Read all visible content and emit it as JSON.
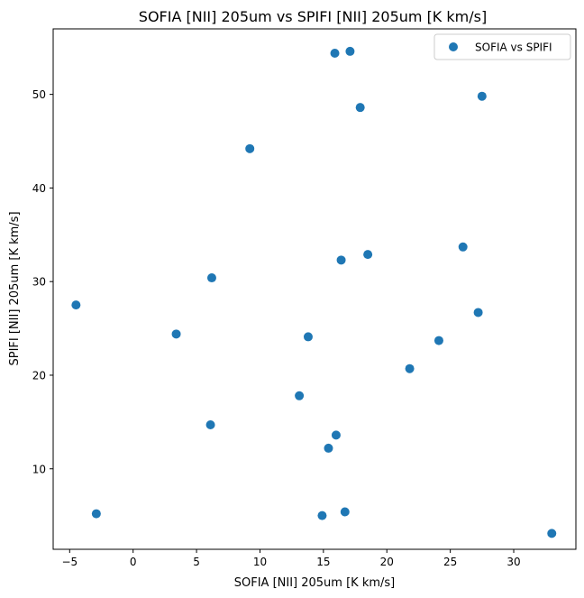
{
  "chart_data": {
    "type": "scatter",
    "title": "SOFIA [NII] 205um vs SPIFI [NII] 205um [K km/s]",
    "xlabel": "SOFIA [NII] 205um [K km/s]",
    "ylabel": "SPIFI [NII] 205um [K km/s]",
    "xlim": [
      -6.3,
      34.9
    ],
    "ylim": [
      1.4,
      57.0
    ],
    "xticks": [
      -5,
      0,
      5,
      10,
      15,
      20,
      25,
      30
    ],
    "yticks": [
      10,
      20,
      30,
      40,
      50
    ],
    "xtick_labels": [
      "−5",
      "0",
      "5",
      "10",
      "15",
      "20",
      "25",
      "30"
    ],
    "ytick_labels": [
      "10",
      "20",
      "30",
      "40",
      "50"
    ],
    "grid": false,
    "legend_position": "top-right",
    "series": [
      {
        "name": "SOFIA vs SPIFI",
        "color": "#1f77b4",
        "points": [
          {
            "x": -4.5,
            "y": 27.5
          },
          {
            "x": -2.9,
            "y": 5.2
          },
          {
            "x": 3.4,
            "y": 24.4
          },
          {
            "x": 6.1,
            "y": 14.7
          },
          {
            "x": 6.2,
            "y": 30.4
          },
          {
            "x": 9.2,
            "y": 44.2
          },
          {
            "x": 13.1,
            "y": 17.8
          },
          {
            "x": 13.8,
            "y": 24.1
          },
          {
            "x": 14.9,
            "y": 5.0
          },
          {
            "x": 15.4,
            "y": 12.2
          },
          {
            "x": 15.9,
            "y": 54.4
          },
          {
            "x": 16.0,
            "y": 13.6
          },
          {
            "x": 16.4,
            "y": 32.3
          },
          {
            "x": 16.7,
            "y": 5.4
          },
          {
            "x": 17.1,
            "y": 54.6
          },
          {
            "x": 17.9,
            "y": 48.6
          },
          {
            "x": 18.5,
            "y": 32.9
          },
          {
            "x": 21.8,
            "y": 20.7
          },
          {
            "x": 24.1,
            "y": 23.7
          },
          {
            "x": 26.0,
            "y": 33.7
          },
          {
            "x": 27.2,
            "y": 26.7
          },
          {
            "x": 27.5,
            "y": 49.8
          },
          {
            "x": 33.0,
            "y": 3.1
          }
        ]
      }
    ]
  }
}
